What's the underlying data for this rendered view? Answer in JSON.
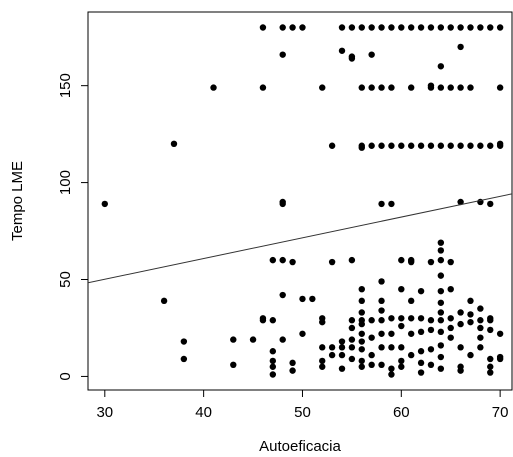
{
  "chart_data": {
    "type": "scatter",
    "title": "",
    "xlabel": "Autoeficacia",
    "ylabel": "Tempo LME",
    "xlim": [
      28.3,
      71.2
    ],
    "ylim": [
      -7,
      188
    ],
    "xticks": [
      30,
      40,
      50,
      60,
      70
    ],
    "yticks": [
      0,
      50,
      100,
      150
    ],
    "grid": false,
    "legend": "none",
    "colors": {
      "points": "#000000",
      "line": "#333333",
      "axes": "#000000"
    },
    "regression_line": {
      "x": [
        28.3,
        71.2
      ],
      "y": [
        48.3,
        94.2
      ]
    },
    "points": [
      [
        30,
        89
      ],
      [
        36,
        39
      ],
      [
        37,
        120
      ],
      [
        38,
        18
      ],
      [
        38,
        9
      ],
      [
        41,
        149
      ],
      [
        43,
        19
      ],
      [
        43,
        6
      ],
      [
        45,
        19
      ],
      [
        46,
        180
      ],
      [
        46,
        149
      ],
      [
        46,
        30
      ],
      [
        46,
        29
      ],
      [
        47,
        60
      ],
      [
        47,
        29
      ],
      [
        47,
        13
      ],
      [
        47,
        8
      ],
      [
        47,
        5
      ],
      [
        47,
        1
      ],
      [
        48,
        180
      ],
      [
        48,
        166
      ],
      [
        48,
        90
      ],
      [
        48,
        89
      ],
      [
        48,
        60
      ],
      [
        48,
        42
      ],
      [
        48,
        19
      ],
      [
        49,
        180
      ],
      [
        49,
        59
      ],
      [
        49,
        7
      ],
      [
        49,
        3
      ],
      [
        50,
        180
      ],
      [
        50,
        40
      ],
      [
        50,
        22
      ],
      [
        51,
        40
      ],
      [
        52,
        149
      ],
      [
        52,
        30
      ],
      [
        52,
        28
      ],
      [
        52,
        15
      ],
      [
        52,
        8
      ],
      [
        52,
        5
      ],
      [
        53,
        119
      ],
      [
        53,
        59
      ],
      [
        53,
        15
      ],
      [
        53,
        11
      ],
      [
        54,
        180
      ],
      [
        54,
        168
      ],
      [
        54,
        18
      ],
      [
        54,
        15
      ],
      [
        54,
        11
      ],
      [
        54,
        4
      ],
      [
        55,
        180
      ],
      [
        55,
        165
      ],
      [
        55,
        164
      ],
      [
        55,
        60
      ],
      [
        55,
        29
      ],
      [
        55,
        25
      ],
      [
        55,
        19
      ],
      [
        55,
        15
      ],
      [
        55,
        9
      ],
      [
        56,
        180
      ],
      [
        56,
        149
      ],
      [
        56,
        119
      ],
      [
        56,
        118
      ],
      [
        56,
        45
      ],
      [
        56,
        39
      ],
      [
        56,
        33
      ],
      [
        56,
        29
      ],
      [
        56,
        27
      ],
      [
        56,
        22
      ],
      [
        56,
        18
      ],
      [
        56,
        14
      ],
      [
        56,
        8
      ],
      [
        56,
        5
      ],
      [
        57,
        180
      ],
      [
        57,
        166
      ],
      [
        57,
        149
      ],
      [
        57,
        119
      ],
      [
        57,
        29
      ],
      [
        57,
        20
      ],
      [
        57,
        11
      ],
      [
        57,
        6
      ],
      [
        58,
        180
      ],
      [
        58,
        149
      ],
      [
        58,
        119
      ],
      [
        58,
        89
      ],
      [
        58,
        49
      ],
      [
        58,
        39
      ],
      [
        58,
        34
      ],
      [
        58,
        29
      ],
      [
        58,
        22
      ],
      [
        58,
        15
      ],
      [
        58,
        6
      ],
      [
        59,
        180
      ],
      [
        59,
        149
      ],
      [
        59,
        119
      ],
      [
        59,
        89
      ],
      [
        59,
        30
      ],
      [
        59,
        22
      ],
      [
        59,
        15
      ],
      [
        59,
        4
      ],
      [
        59,
        1
      ],
      [
        60,
        180
      ],
      [
        60,
        119
      ],
      [
        60,
        60
      ],
      [
        60,
        45
      ],
      [
        60,
        30
      ],
      [
        60,
        26
      ],
      [
        60,
        15
      ],
      [
        60,
        8
      ],
      [
        60,
        5
      ],
      [
        61,
        180
      ],
      [
        61,
        149
      ],
      [
        61,
        119
      ],
      [
        61,
        60
      ],
      [
        61,
        59
      ],
      [
        61,
        39
      ],
      [
        61,
        30
      ],
      [
        61,
        22
      ],
      [
        61,
        11
      ],
      [
        62,
        180
      ],
      [
        62,
        119
      ],
      [
        62,
        44
      ],
      [
        62,
        30
      ],
      [
        62,
        23
      ],
      [
        62,
        13
      ],
      [
        62,
        7
      ],
      [
        62,
        2
      ],
      [
        63,
        180
      ],
      [
        63,
        150
      ],
      [
        63,
        149
      ],
      [
        63,
        119
      ],
      [
        63,
        59
      ],
      [
        63,
        29
      ],
      [
        63,
        24
      ],
      [
        63,
        14
      ],
      [
        63,
        6
      ],
      [
        64,
        180
      ],
      [
        64,
        160
      ],
      [
        64,
        149
      ],
      [
        64,
        119
      ],
      [
        64,
        69
      ],
      [
        64,
        65
      ],
      [
        64,
        60
      ],
      [
        64,
        52
      ],
      [
        64,
        44
      ],
      [
        64,
        38
      ],
      [
        64,
        33
      ],
      [
        64,
        29
      ],
      [
        64,
        23
      ],
      [
        64,
        16
      ],
      [
        64,
        10
      ],
      [
        64,
        4
      ],
      [
        65,
        180
      ],
      [
        65,
        149
      ],
      [
        65,
        119
      ],
      [
        65,
        59
      ],
      [
        65,
        45
      ],
      [
        65,
        30
      ],
      [
        65,
        25
      ],
      [
        65,
        20
      ],
      [
        66,
        180
      ],
      [
        66,
        170
      ],
      [
        66,
        149
      ],
      [
        66,
        119
      ],
      [
        66,
        90
      ],
      [
        66,
        33
      ],
      [
        66,
        27
      ],
      [
        66,
        15
      ],
      [
        66,
        5
      ],
      [
        66,
        3
      ],
      [
        67,
        180
      ],
      [
        67,
        149
      ],
      [
        67,
        119
      ],
      [
        67,
        39
      ],
      [
        67,
        32
      ],
      [
        67,
        28
      ],
      [
        67,
        11
      ],
      [
        68,
        180
      ],
      [
        68,
        119
      ],
      [
        68,
        90
      ],
      [
        68,
        35
      ],
      [
        68,
        29
      ],
      [
        68,
        25
      ],
      [
        68,
        20
      ],
      [
        68,
        15
      ],
      [
        69,
        180
      ],
      [
        69,
        119
      ],
      [
        69,
        89
      ],
      [
        69,
        30
      ],
      [
        69,
        29
      ],
      [
        69,
        24
      ],
      [
        69,
        9
      ],
      [
        69,
        5
      ],
      [
        69,
        2
      ],
      [
        70,
        180
      ],
      [
        70,
        149
      ],
      [
        70,
        120
      ],
      [
        70,
        119
      ],
      [
        70,
        22
      ],
      [
        70,
        10
      ],
      [
        70,
        9
      ]
    ]
  }
}
